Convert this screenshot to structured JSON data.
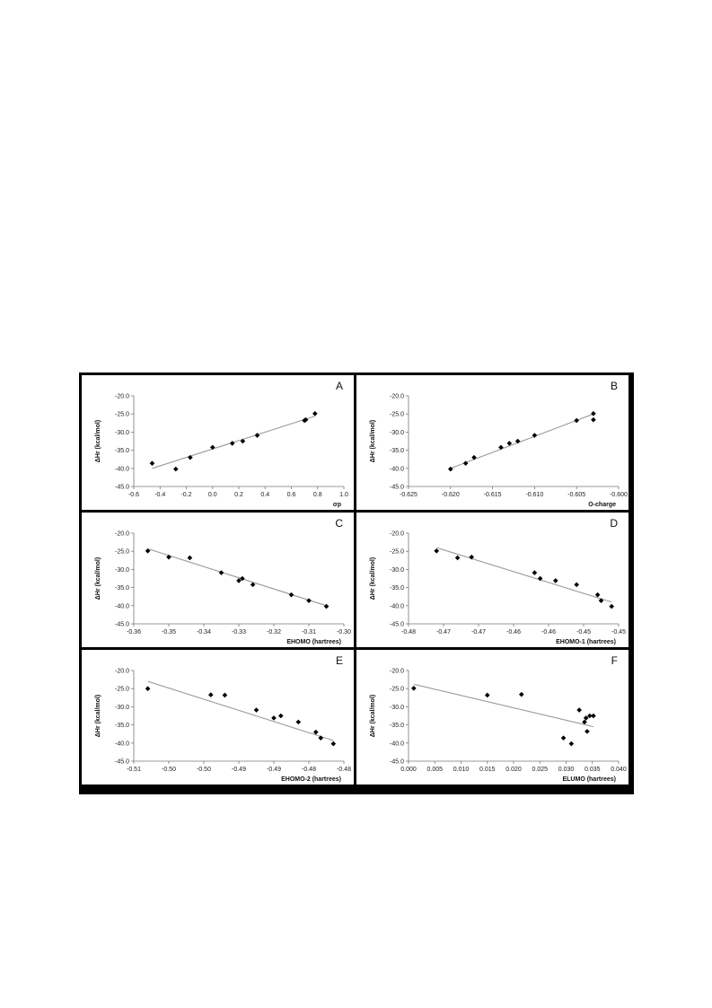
{
  "figure": {
    "panel_border_color": "#000000",
    "fit_line_color": "#999999",
    "point_color": "#000000"
  },
  "chart_data": [
    {
      "type": "scatter",
      "panel_label": "A",
      "xlabel": "σp",
      "ylabel": "ΔHr (kcal/mol)",
      "xlim": [
        -0.6,
        1.0
      ],
      "ylim": [
        -45.0,
        -20.0
      ],
      "xticks": [
        "-0.6",
        "-0.4",
        "-0.2",
        "0.0",
        "0.2",
        "0.4",
        "0.6",
        "0.8",
        "1.0"
      ],
      "yticks": [
        "-20.0",
        "-25.0",
        "-30.0",
        "-35.0",
        "-40.0",
        "-45.0"
      ],
      "points": [
        [
          -0.46,
          -38.6
        ],
        [
          -0.28,
          -40.2
        ],
        [
          -0.17,
          -37.0
        ],
        [
          0.0,
          -34.2
        ],
        [
          0.15,
          -33.1
        ],
        [
          0.23,
          -32.5
        ],
        [
          0.34,
          -30.9
        ],
        [
          0.7,
          -26.8
        ],
        [
          0.71,
          -26.6
        ],
        [
          0.78,
          -24.9
        ]
      ],
      "fit": [
        [
          -0.46,
          -40.0
        ],
        [
          0.78,
          -25.6
        ]
      ]
    },
    {
      "type": "scatter",
      "panel_label": "B",
      "xlabel": "O-charge",
      "ylabel": "ΔHr (kcal/mol)",
      "xlim": [
        -0.625,
        -0.6
      ],
      "ylim": [
        -45.0,
        -20.0
      ],
      "xticks": [
        "-0.625",
        "-0.620",
        "-0.615",
        "-0.610",
        "-0.605",
        "-0.600"
      ],
      "yticks": [
        "-20.0",
        "-25.0",
        "-30.0",
        "-35.0",
        "-40.0",
        "-45.0"
      ],
      "points": [
        [
          -0.62,
          -40.2
        ],
        [
          -0.6182,
          -38.6
        ],
        [
          -0.6172,
          -37.0
        ],
        [
          -0.614,
          -34.2
        ],
        [
          -0.613,
          -33.1
        ],
        [
          -0.612,
          -32.5
        ],
        [
          -0.61,
          -30.9
        ],
        [
          -0.605,
          -26.8
        ],
        [
          -0.603,
          -26.6
        ],
        [
          -0.603,
          -24.9
        ]
      ],
      "fit": [
        [
          -0.62,
          -40.0
        ],
        [
          -0.603,
          -25.0
        ]
      ]
    },
    {
      "type": "scatter",
      "panel_label": "C",
      "xlabel": "EHOMO (hartrees)",
      "ylabel": "ΔHr (kcal/mol)",
      "xlim": [
        -0.36,
        -0.3
      ],
      "ylim": [
        -45.0,
        -20.0
      ],
      "xticks": [
        "-0.36",
        "-0.35",
        "-0.34",
        "-0.33",
        "-0.32",
        "-0.31",
        "-0.30"
      ],
      "yticks": [
        "-20.0",
        "-25.0",
        "-30.0",
        "-35.0",
        "-40.0",
        "-45.0"
      ],
      "points": [
        [
          -0.356,
          -24.9
        ],
        [
          -0.35,
          -26.6
        ],
        [
          -0.344,
          -26.8
        ],
        [
          -0.335,
          -30.9
        ],
        [
          -0.33,
          -33.1
        ],
        [
          -0.329,
          -32.5
        ],
        [
          -0.326,
          -34.2
        ],
        [
          -0.315,
          -37.0
        ],
        [
          -0.31,
          -38.6
        ],
        [
          -0.305,
          -40.2
        ]
      ],
      "fit": [
        [
          -0.356,
          -24.3
        ],
        [
          -0.305,
          -40.0
        ]
      ]
    },
    {
      "type": "scatter",
      "panel_label": "D",
      "xlabel": "EHOMO-1 (hartrees)",
      "ylabel": "ΔHr (kcal/mol)",
      "xlim": [
        -0.48,
        -0.45
      ],
      "ylim": [
        -45.0,
        -20.0
      ],
      "xticks": [
        "-0.48",
        "-0.47",
        "-0.47",
        "-0.46",
        "-0.46",
        "-0.45",
        "-0.45"
      ],
      "yticks": [
        "-20.0",
        "-25.0",
        "-30.0",
        "-35.0",
        "-40.0",
        "-45.0"
      ],
      "points": [
        [
          -0.476,
          -24.9
        ],
        [
          -0.473,
          -26.8
        ],
        [
          -0.471,
          -26.6
        ],
        [
          -0.462,
          -30.9
        ],
        [
          -0.4612,
          -32.5
        ],
        [
          -0.459,
          -33.1
        ],
        [
          -0.456,
          -34.2
        ],
        [
          -0.453,
          -37.0
        ],
        [
          -0.4525,
          -38.6
        ],
        [
          -0.451,
          -40.2
        ]
      ],
      "fit": [
        [
          -0.476,
          -24.0
        ],
        [
          -0.451,
          -39.0
        ]
      ]
    },
    {
      "type": "scatter",
      "panel_label": "E",
      "xlabel": "EHOMO-2 (hartrees)",
      "ylabel": "ΔHr (kcal/mol)",
      "xlim": [
        -0.51,
        -0.48
      ],
      "ylim": [
        -45.0,
        -20.0
      ],
      "xticks": [
        "-0.51",
        "-0.50",
        "-0.50",
        "-0.49",
        "-0.49",
        "-0.48",
        "-0.48"
      ],
      "yticks": [
        "-20.0",
        "-25.0",
        "-30.0",
        "-35.0",
        "-40.0",
        "-45.0"
      ],
      "points": [
        [
          -0.508,
          -25.0
        ],
        [
          -0.499,
          -26.7
        ],
        [
          -0.497,
          -26.8
        ],
        [
          -0.4925,
          -30.9
        ],
        [
          -0.49,
          -33.1
        ],
        [
          -0.489,
          -32.5
        ],
        [
          -0.4865,
          -34.2
        ],
        [
          -0.484,
          -37.0
        ],
        [
          -0.4833,
          -38.6
        ],
        [
          -0.4815,
          -40.2
        ]
      ],
      "fit": [
        [
          -0.508,
          -23.0
        ],
        [
          -0.4815,
          -39.3
        ]
      ]
    },
    {
      "type": "scatter",
      "panel_label": "F",
      "xlabel": "ELUMO (hartrees)",
      "ylabel": "ΔHr (kcal/mol)",
      "xlim": [
        0.0,
        0.04
      ],
      "ylim": [
        -45.0,
        -20.0
      ],
      "xticks": [
        "0.000",
        "0.005",
        "0.010",
        "0.015",
        "0.020",
        "0.025",
        "0.030",
        "0.035",
        "0.040"
      ],
      "yticks": [
        "-20.0",
        "-25.0",
        "-30.0",
        "-35.0",
        "-40.0",
        "-45.0"
      ],
      "points": [
        [
          0.001,
          -24.9
        ],
        [
          0.015,
          -26.8
        ],
        [
          0.0215,
          -26.6
        ],
        [
          0.0295,
          -38.6
        ],
        [
          0.031,
          -40.2
        ],
        [
          0.0325,
          -30.9
        ],
        [
          0.0335,
          -34.2
        ],
        [
          0.0338,
          -33.1
        ],
        [
          0.0345,
          -32.5
        ],
        [
          0.0352,
          -32.5
        ],
        [
          0.034,
          -36.8
        ]
      ],
      "fit": [
        [
          0.001,
          -23.8
        ],
        [
          0.0352,
          -35.5
        ]
      ]
    }
  ]
}
